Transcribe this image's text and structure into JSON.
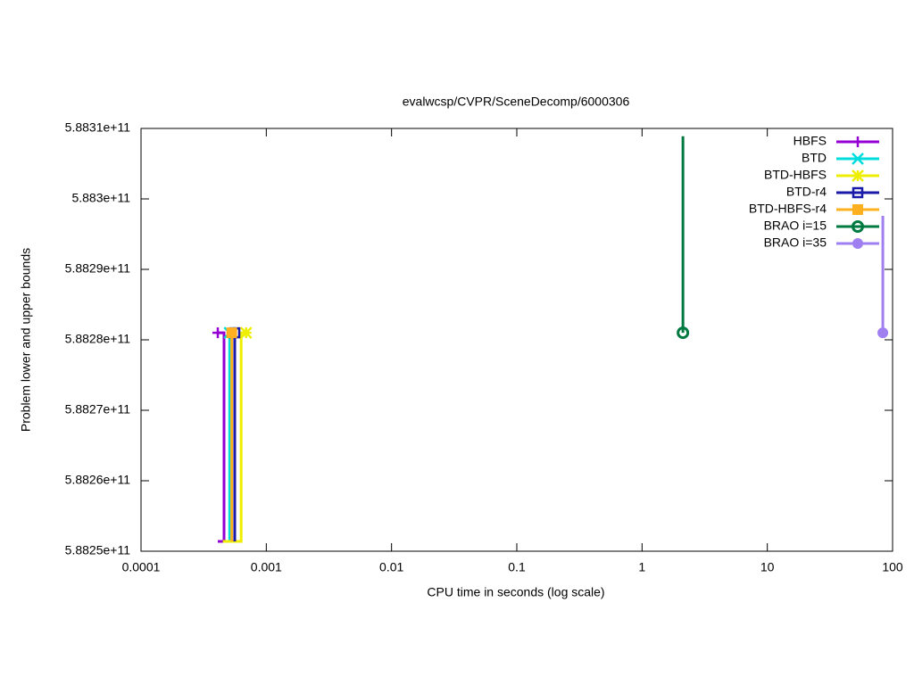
{
  "chart_data": {
    "type": "line",
    "title": "evalwcsp/CVPR/SceneDecomp/6000306",
    "x_label": "CPU time in seconds (log scale)",
    "y_label": "Problem lower and upper bounds",
    "x_log": true,
    "xlim": [
      0.0001,
      100
    ],
    "xticks": [
      0.0001,
      0.001,
      0.01,
      0.1,
      1,
      10,
      100
    ],
    "ylim": [
      588250000000,
      588310000000
    ],
    "yticks": [
      {
        "value": 588250000000,
        "label": "5.8825e+11"
      },
      {
        "value": 588260000000,
        "label": "5.8826e+11"
      },
      {
        "value": 588270000000,
        "label": "5.8827e+11"
      },
      {
        "value": 588280000000,
        "label": "5.8828e+11"
      },
      {
        "value": 588290000000,
        "label": "5.8829e+11"
      },
      {
        "value": 588300000000,
        "label": "5.883e+11"
      },
      {
        "value": 588310000000,
        "label": "5.8831e+11"
      }
    ],
    "legend": "top-right",
    "series": [
      {
        "name": "HBFS",
        "color": "#9400d3",
        "marker": "plus",
        "x": [
          0.00041,
          0.00046,
          0.00046,
          0.00041
        ],
        "values": [
          588281000000,
          588281000000,
          588251400000,
          588251400000
        ]
      },
      {
        "name": "BTD",
        "color": "#00dddd",
        "marker": "cross",
        "x": [
          0.00051,
          0.00051,
          0.00051
        ],
        "values": [
          588281000000,
          588281000000,
          588251400000
        ]
      },
      {
        "name": "BTD-HBFS",
        "color": "#eeee00",
        "marker": "star",
        "x": [
          0.00069,
          0.00063,
          0.00063,
          0.00045
        ],
        "values": [
          588281000000,
          588281000000,
          588251400000,
          588251400000
        ]
      },
      {
        "name": "BTD-r4",
        "color": "#1a1aa8",
        "marker": "square-open",
        "x": [
          0.00056,
          0.00056,
          0.00056
        ],
        "values": [
          588281000000,
          588281000000,
          588251400000
        ]
      },
      {
        "name": "BTD-HBFS-r4",
        "color": "#ffb020",
        "marker": "square",
        "x": [
          0.00053,
          0.00053,
          0.00053
        ],
        "values": [
          588281000000,
          588281000000,
          588251400000
        ]
      },
      {
        "name": "BRAO i=15",
        "color": "#007a40",
        "marker": "circle-open",
        "x": [
          2.12,
          2.12
        ],
        "values": [
          588281000000,
          588308900000
        ]
      },
      {
        "name": "BRAO i=35",
        "color": "#a080f0",
        "marker": "circle",
        "x": [
          83.6,
          83.6
        ],
        "values": [
          588281000000,
          588297600000
        ]
      }
    ]
  }
}
